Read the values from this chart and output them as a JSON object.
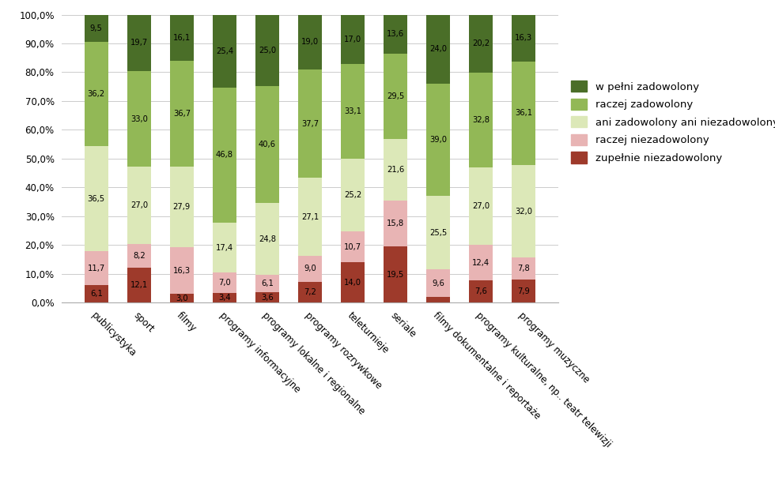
{
  "categories": [
    "publicystyka",
    "sport",
    "filmy",
    "programy informacyjne",
    "programy lokalne i regionalne",
    "programy rozrywkowe",
    "teleturnieje",
    "seriale",
    "filmy dokumentalne i reportaże",
    "programy kulturalne, np.. teatr telewizji",
    "programy muzyczne"
  ],
  "series": {
    "zupełnie niezadowolony": [
      6.1,
      12.1,
      3.0,
      3.4,
      3.6,
      7.2,
      14.0,
      19.5,
      1.9,
      7.6,
      7.9
    ],
    "raczej niezadowolony": [
      11.7,
      8.2,
      16.3,
      7.0,
      6.1,
      9.0,
      10.7,
      15.8,
      9.6,
      12.4,
      7.8
    ],
    "ani zadowolony ani niezadowolony": [
      36.5,
      27.0,
      27.9,
      17.4,
      24.8,
      27.1,
      25.2,
      21.6,
      25.5,
      27.0,
      32.0
    ],
    "raczej zadowolony": [
      36.2,
      33.0,
      36.7,
      46.8,
      40.6,
      37.7,
      33.1,
      29.5,
      39.0,
      32.8,
      36.1
    ],
    "w pełni zadowolony": [
      9.5,
      19.7,
      16.1,
      25.4,
      25.0,
      19.0,
      17.0,
      13.6,
      24.0,
      20.2,
      16.3
    ]
  },
  "colors": {
    "zupełnie niezadowolony": "#9e3a2b",
    "raczej niezadowolony": "#e8b4b4",
    "ani zadowolony ani niezadowolony": "#dce8b8",
    "raczej zadowolony": "#92b856",
    "w pełni zadowolony": "#4a6e28"
  },
  "legend_order": [
    "w pełni zadowolony",
    "raczej zadowolony",
    "ani zadowolony ani niezadowolony",
    "raczej niezadowolony",
    "zupełnie niezadowolony"
  ],
  "stack_order": [
    "zupełnie niezadowolony",
    "raczej niezadowolony",
    "ani zadowolony ani niezadowolony",
    "raczej zadowolony",
    "w pełni zadowolony"
  ],
  "ylim": [
    0,
    100
  ],
  "yticks": [
    0,
    10,
    20,
    30,
    40,
    50,
    60,
    70,
    80,
    90,
    100
  ],
  "background_color": "#ffffff",
  "bar_width": 0.55,
  "label_fontsize": 7.2,
  "legend_fontsize": 9.5,
  "tick_fontsize": 8.5,
  "grid_color": "#cccccc"
}
